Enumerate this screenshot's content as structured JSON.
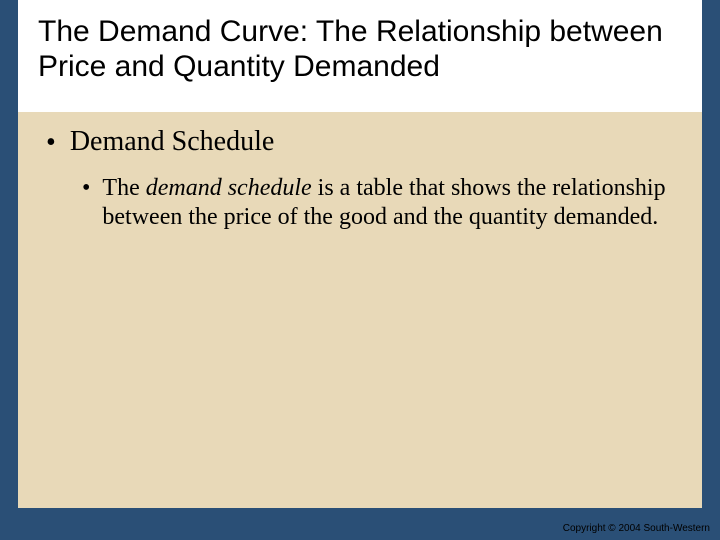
{
  "colors": {
    "slide_background": "#2a4f76",
    "title_background": "#ffffff",
    "body_background": "#e8d9b8",
    "text": "#000000"
  },
  "typography": {
    "title_font": "Arial",
    "title_fontsize_pt": 30,
    "body_font": "Times New Roman",
    "l1_fontsize_pt": 28,
    "l2_fontsize_pt": 24,
    "copyright_fontsize_pt": 10
  },
  "title": "The Demand Curve: The Relationship between Price and Quantity Demanded",
  "bullets": {
    "l1": {
      "marker": "•",
      "text": "Demand Schedule"
    },
    "l2": {
      "marker": "•",
      "pre": "The ",
      "italic": "demand schedule",
      "post": " is a table that shows the relationship between the price of the good and the quantity demanded."
    }
  },
  "copyright": "Copyright © 2004 South-Western"
}
